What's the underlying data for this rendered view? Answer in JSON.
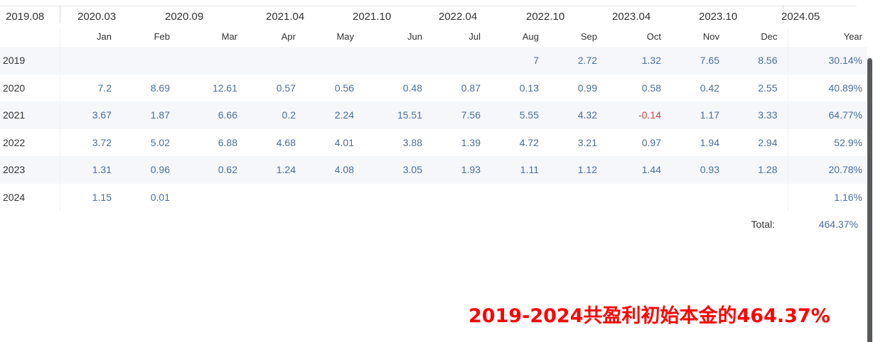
{
  "axis": {
    "labels": [
      "2019.08",
      "2020.03",
      "2020.09",
      "2021.04",
      "2021.10",
      "2022.04",
      "2022.10",
      "2023.04",
      "2023.10",
      "2024.05"
    ]
  },
  "table": {
    "headers": [
      "",
      "Jan",
      "Feb",
      "Mar",
      "Apr",
      "May",
      "Jun",
      "Jul",
      "Aug",
      "Sep",
      "Oct",
      "Nov",
      "Dec",
      "Year"
    ],
    "rows": [
      {
        "year": "2019",
        "months": [
          "",
          "",
          "",
          "",
          "",
          "",
          "",
          "7",
          "2.72",
          "1.32",
          "7.65",
          "8.56"
        ],
        "total": "30.14%"
      },
      {
        "year": "2020",
        "months": [
          "7.2",
          "8.69",
          "12.61",
          "0.57",
          "0.56",
          "0.48",
          "0.87",
          "0.13",
          "0.99",
          "0.58",
          "0.42",
          "2.55"
        ],
        "total": "40.89%"
      },
      {
        "year": "2021",
        "months": [
          "3.67",
          "1.87",
          "6.66",
          "0.2",
          "2.24",
          "15.51",
          "7.56",
          "5.55",
          "4.32",
          "-0.14",
          "1.17",
          "3.33"
        ],
        "total": "64.77%"
      },
      {
        "year": "2022",
        "months": [
          "3.72",
          "5.02",
          "6.88",
          "4.68",
          "4.01",
          "3.88",
          "1.39",
          "4.72",
          "3.21",
          "0.97",
          "1.94",
          "2.94"
        ],
        "total": "52.9%"
      },
      {
        "year": "2023",
        "months": [
          "1.31",
          "0.96",
          "0.62",
          "1.24",
          "4.08",
          "3.05",
          "1.93",
          "1.11",
          "1.12",
          "1.44",
          "0.93",
          "1.28"
        ],
        "total": "20.78%"
      },
      {
        "year": "2024",
        "months": [
          "1.15",
          "0.01",
          "",
          "",
          "",
          "",
          "",
          "",
          "",
          "",
          "",
          ""
        ],
        "total": "1.16%"
      }
    ],
    "total_label": "Total:",
    "total_value": "464.37%"
  },
  "caption": "2019-2024共盈利初始本金的464.37%",
  "colors": {
    "positive": "#4a6f9d",
    "negative": "#d1453b",
    "caption": "#ff0000"
  }
}
